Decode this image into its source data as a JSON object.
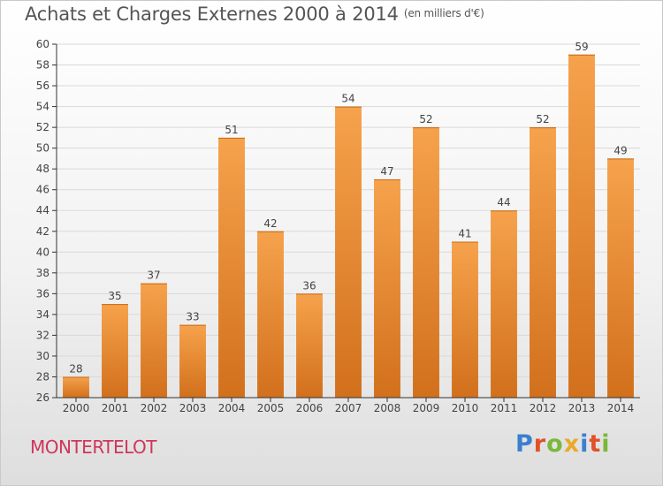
{
  "header": {
    "title": "Achats et Charges Externes 2000 à 2014",
    "unit": "(en milliers d'€)"
  },
  "footer": {
    "commune": "MONTERTELOT",
    "logo_text": "Proxiti",
    "logo_colors": [
      "#3a7fd0",
      "#e0522a",
      "#7ab83a",
      "#e9a92a",
      "#3a7fd0",
      "#e0522a",
      "#7ab83a"
    ]
  },
  "colors": {
    "bar_light": "#f6a24c",
    "bar_dark": "#d2701c",
    "grid": "#d9d9d9",
    "axis": "#333333"
  },
  "chart_data": {
    "type": "bar",
    "title": "Achats et Charges Externes 2000 à 2014",
    "xlabel": "",
    "ylabel": "",
    "categories": [
      "2000",
      "2001",
      "2002",
      "2003",
      "2004",
      "2005",
      "2006",
      "2007",
      "2008",
      "2009",
      "2010",
      "2011",
      "2012",
      "2013",
      "2014"
    ],
    "values": [
      28,
      35,
      37,
      33,
      51,
      42,
      36,
      54,
      47,
      52,
      41,
      44,
      52,
      59,
      49
    ],
    "ylim": [
      26,
      60
    ],
    "yticks": [
      26,
      28,
      30,
      32,
      34,
      36,
      38,
      40,
      42,
      44,
      46,
      48,
      50,
      52,
      54,
      56,
      58,
      60
    ],
    "grid": true
  }
}
